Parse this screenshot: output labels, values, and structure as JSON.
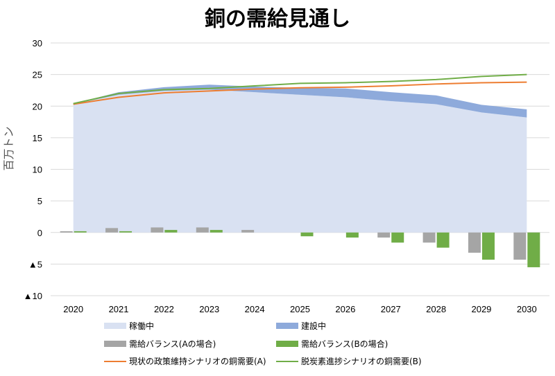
{
  "chart_data": {
    "type": "area",
    "title": "銅の需給見通し",
    "ylabel": "百万トン",
    "ylim": [
      -10,
      30
    ],
    "yticks": [
      {
        "value": 30,
        "label": "30",
        "color": "#000000"
      },
      {
        "value": 25,
        "label": "25",
        "color": "#000000"
      },
      {
        "value": 20,
        "label": "20",
        "color": "#000000"
      },
      {
        "value": 15,
        "label": "15",
        "color": "#000000"
      },
      {
        "value": 10,
        "label": "10",
        "color": "#000000"
      },
      {
        "value": 5,
        "label": "5",
        "color": "#000000"
      },
      {
        "value": 0,
        "label": "0",
        "color": "#000000"
      },
      {
        "value": -5,
        "label": "▲5",
        "color": "#e00000"
      },
      {
        "value": -10,
        "label": "▲10",
        "color": "#e00000"
      }
    ],
    "categories": [
      "2020",
      "2021",
      "2022",
      "2023",
      "2024",
      "2025",
      "2026",
      "2027",
      "2028",
      "2029",
      "2030"
    ],
    "grid": "horizontal",
    "legend_position": "bottom",
    "series": [
      {
        "name": "稼働中",
        "kind": "area",
        "color": "#d9e1f2",
        "values": [
          20.3,
          21.8,
          22.4,
          22.6,
          22.2,
          21.8,
          21.4,
          20.8,
          20.3,
          19.0,
          18.2
        ]
      },
      {
        "name": "建設中",
        "kind": "stacked-area",
        "color": "#8eaadb",
        "values": [
          0.1,
          0.4,
          0.6,
          0.8,
          0.9,
          1.1,
          1.4,
          1.4,
          1.4,
          1.2,
          1.3
        ]
      },
      {
        "name": "需給バランス(Aの場合)",
        "kind": "bar",
        "color": "#a5a5a5",
        "values": [
          0.2,
          0.7,
          0.8,
          0.8,
          0.4,
          0.0,
          0.0,
          -0.8,
          -1.6,
          -3.2,
          -4.3
        ]
      },
      {
        "name": "需給バランス(Bの場合)",
        "kind": "bar",
        "color": "#70ad47",
        "values": [
          0.2,
          0.2,
          0.4,
          0.4,
          0.0,
          -0.6,
          -0.8,
          -1.6,
          -2.4,
          -4.3,
          -5.5
        ]
      },
      {
        "name": "現状の政策維持シナリオの銅需要(A)",
        "kind": "line",
        "color": "#ed7d31",
        "values": [
          20.3,
          21.4,
          22.1,
          22.4,
          22.7,
          22.9,
          23.0,
          23.2,
          23.5,
          23.7,
          23.8
        ]
      },
      {
        "name": "脱炭素進捗シナリオの銅需要(B)",
        "kind": "line",
        "color": "#70ad47",
        "values": [
          20.4,
          22.0,
          22.6,
          22.8,
          23.2,
          23.6,
          23.7,
          23.9,
          24.2,
          24.7,
          25.0
        ]
      }
    ]
  }
}
